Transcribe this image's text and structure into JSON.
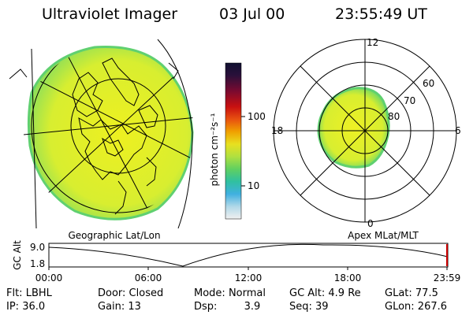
{
  "header": {
    "instrument": "Ultraviolet Imager",
    "date": "03 Jul 00",
    "time": "23:55:49 UT"
  },
  "left_panel": {
    "label": "Geographic Lat/Lon"
  },
  "colorbar": {
    "unit_label": "photon cm⁻²s⁻¹",
    "tick_labels": [
      "100",
      "10"
    ],
    "colors": [
      "#101030",
      "#2a103a",
      "#7a0a30",
      "#c81010",
      "#e85010",
      "#f0a000",
      "#e8e020",
      "#b0e040",
      "#60d060",
      "#30c0a0",
      "#40b0e0",
      "#b0d8e8",
      "#f0f0f0"
    ]
  },
  "right_panel": {
    "label": "Apex MLat/MLT",
    "mlt_labels": {
      "top": "12",
      "left": "18",
      "right": "6",
      "bottom": "0"
    },
    "lat_labels": [
      "60",
      "70",
      "80"
    ]
  },
  "altitude_plot": {
    "ylabel": "GC Alt",
    "yticks": [
      "9.0",
      "1.8"
    ],
    "xticks": [
      "00:00",
      "06:00",
      "12:00",
      "18:00",
      "23:59"
    ]
  },
  "info": {
    "row1": [
      {
        "label": "Flt: ",
        "value": "LBHL"
      },
      {
        "label": "Door: ",
        "value": "Closed"
      },
      {
        "label": "Mode: ",
        "value": "Normal"
      },
      {
        "label": "GC Alt: ",
        "value": "4.9 Re"
      },
      {
        "label": "GLat: ",
        "value": "77.5"
      }
    ],
    "row2": [
      {
        "label": "IP: ",
        "value": "36.0"
      },
      {
        "label": "Gain: ",
        "value": "13"
      },
      {
        "label": "Dsp: ",
        "value": "3.9"
      },
      {
        "label": "Seq: ",
        "value": "39"
      },
      {
        "label": "GLon: ",
        "value": "267.6"
      }
    ]
  },
  "colors": {
    "aurora_fill": "#dff02a",
    "aurora_edge": "#5ed86a",
    "ink": "#000000",
    "marker": "#cc0000"
  }
}
